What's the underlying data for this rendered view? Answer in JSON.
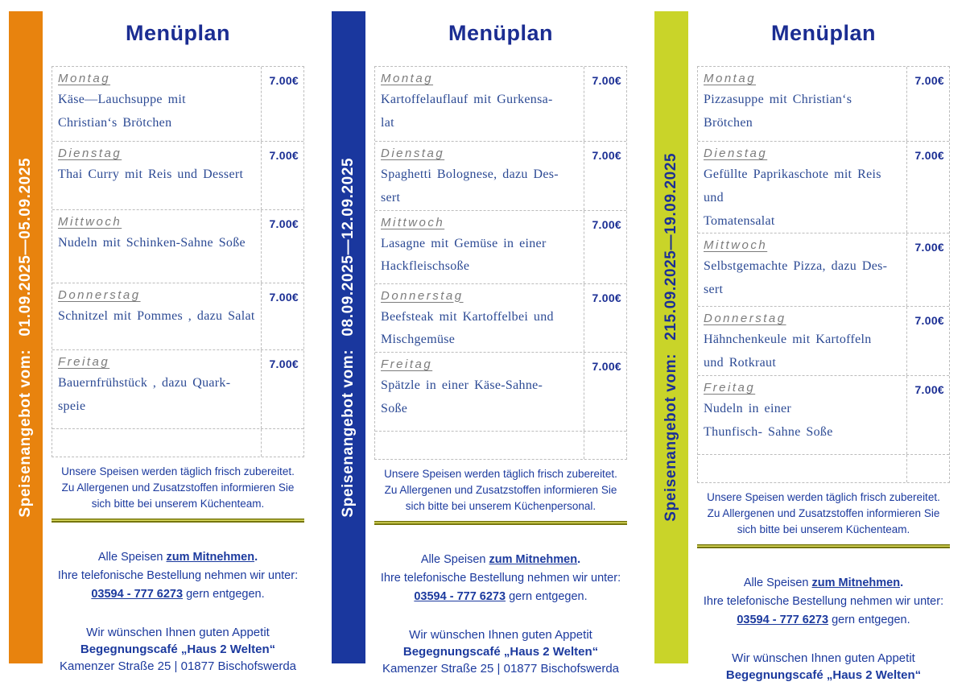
{
  "page_title": "Menüplan",
  "currency_price": "7.00€",
  "accent_colors": {
    "week1_bar": "#E8830E",
    "week2_bar": "#1A379E",
    "week3_bar": "#C9D429",
    "divider_olive": "#75750A",
    "text_navy": "#1B2D92"
  },
  "columns": [
    {
      "bar_color": "#E8830E",
      "bar_text_color": "#FFFFFF",
      "sidebar_label": "Speisenangebot vom:",
      "sidebar_dates": "01.09.2025—05.09.2025",
      "menu": [
        {
          "day": "Montag",
          "dish": "Käse—Lauchsuppe mit\nChristian‘s Brötchen",
          "price": "7.00€"
        },
        {
          "day": "Dienstag",
          "dish": "Thai Curry mit Reis und Dessert",
          "price": "7.00€"
        },
        {
          "day": "Mittwoch",
          "dish": "Nudeln mit Schinken-Sahne Soße",
          "price": "7.00€"
        },
        {
          "day": "Donnerstag",
          "dish": "Schnitzel mit Pommes , dazu Salat",
          "price": "7.00€"
        },
        {
          "day": "Freitag",
          "dish": "Bauernfrühstück , dazu Quark-\nspeie",
          "price": "7.00€"
        }
      ],
      "note": [
        "Unsere Speisen werden täglich frisch zubereitet.",
        "Zu Allergenen und Zusatzstoffen informieren Sie",
        "sich bitte bei unserem Küchenteam."
      ]
    },
    {
      "bar_color": "#1A379E",
      "bar_text_color": "#FFFFFF",
      "sidebar_label": "Speisenangebot vom:",
      "sidebar_dates": "08.09.2025—12.09.2025",
      "menu": [
        {
          "day": "Montag",
          "dish": "Kartoffelauflauf mit Gurkensa-\nlat",
          "price": "7.00€"
        },
        {
          "day": "Dienstag",
          "dish": "Spaghetti Bolognese, dazu Des-\nsert",
          "price": "7.00€"
        },
        {
          "day": "Mittwoch",
          "dish": "Lasagne mit Gemüse in einer\nHackfleischsoße",
          "price": "7.00€"
        },
        {
          "day": "Donnerstag",
          "dish": "Beefsteak mit Kartoffelbei und\nMischgemüse",
          "price": "7.00€"
        },
        {
          "day": "Freitag",
          "dish": "Spätzle in einer Käse-Sahne-\nSoße",
          "price": "7.00€"
        }
      ],
      "note": [
        "Unsere Speisen werden täglich frisch zubereitet.",
        "Zu Allergenen und Zusatzstoffen informieren Sie",
        "sich bitte bei unserem Küchenpersonal."
      ]
    },
    {
      "bar_color": "#C9D429",
      "bar_text_color": "#1B2F96",
      "sidebar_label": "Speisenangebot vom:",
      "sidebar_dates": "215.09.2025—19.09.2025",
      "menu": [
        {
          "day": "Montag",
          "dish": "Pizzasuppe mit Christian‘s\nBrötchen",
          "price": "7.00€"
        },
        {
          "day": "Dienstag",
          "dish": "Gefüllte Paprikaschote mit Reis und\nTomatensalat",
          "price": "7.00€"
        },
        {
          "day": "Mittwoch",
          "dish": "Selbstgemachte Pizza, dazu Des-\nsert",
          "price": "7.00€"
        },
        {
          "day": "Donnerstag",
          "dish": "Hähnchenkeule mit Kartoffeln\nund Rotkraut",
          "price": "7.00€"
        },
        {
          "day": "Freitag",
          "dish": "Nudeln in einer\nThunfisch- Sahne Soße",
          "price": "7.00€"
        }
      ],
      "note": [
        "Unsere Speisen werden täglich frisch zubereitet.",
        "Zu Allergenen und Zusatzstoffen informieren Sie",
        "sich bitte bei unserem Küchenteam."
      ]
    }
  ],
  "takeaway": {
    "line1_prefix": "Alle Speisen ",
    "line1_bold": "zum Mitnehmen",
    "line1_suffix": ".",
    "line2": "Ihre telefonische Bestellung nehmen wir unter:",
    "phone": "03594 - 777 6273",
    "line3_suffix": " gern entgegen."
  },
  "address": [
    "Wir wünschen Ihnen guten Appetit",
    "Begegnungscafé „Haus 2 Welten“",
    "Kamenzer Straße 25 | 01877 Bischofswerda"
  ]
}
